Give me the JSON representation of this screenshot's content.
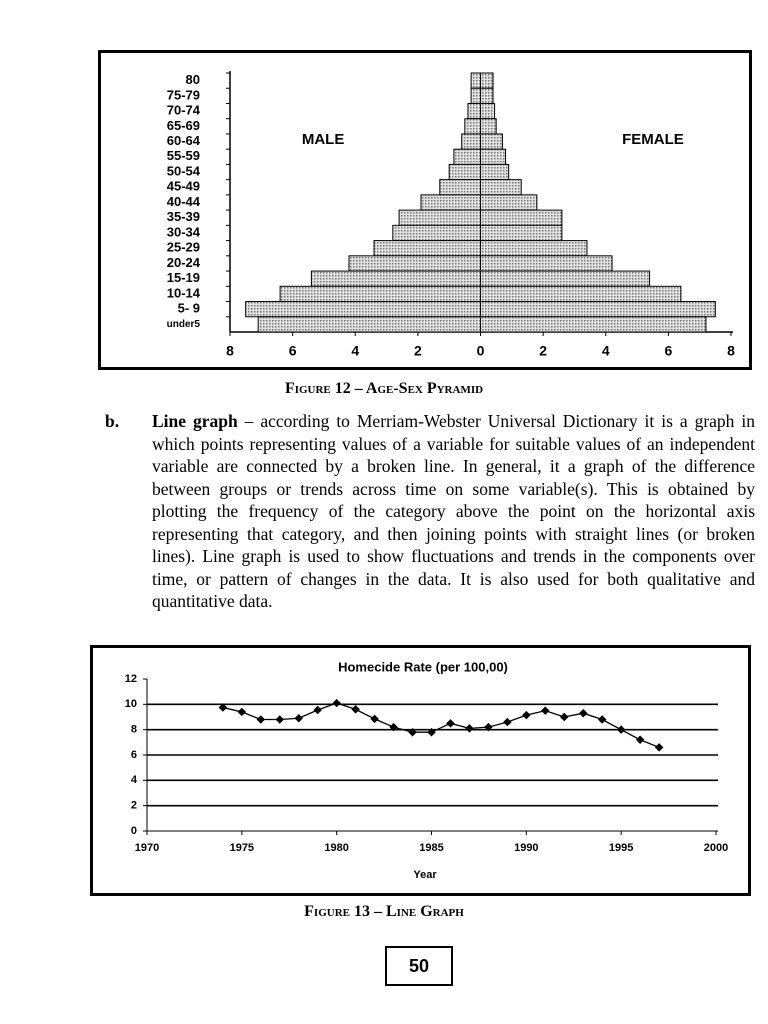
{
  "chart_data": [
    {
      "type": "pyramid",
      "categories": [
        "80",
        "75-79",
        "70-74",
        "65-69",
        "60-64",
        "55-59",
        "50-54",
        "45-49",
        "40-44",
        "35-39",
        "30-34",
        "25-29",
        "20-24",
        "15-19",
        "10-14",
        "5- 9",
        "under5"
      ],
      "series": [
        {
          "name": "MALE",
          "color": "#c8c8c8",
          "values": [
            -0.3,
            -0.3,
            -0.4,
            -0.5,
            -0.6,
            -0.85,
            -1.0,
            -1.3,
            -1.9,
            -2.6,
            -2.8,
            -3.4,
            -4.2,
            -5.4,
            -6.4,
            -7.5,
            -7.1
          ]
        },
        {
          "name": "FEMALE",
          "color": "#c8c8c8",
          "values": [
            0.4,
            0.4,
            0.45,
            0.5,
            0.7,
            0.8,
            0.9,
            1.3,
            1.8,
            2.6,
            2.6,
            3.4,
            4.2,
            5.4,
            6.4,
            7.5,
            7.2
          ]
        }
      ],
      "xlim": [
        -8,
        8
      ],
      "xticks": [
        {
          "value": -8,
          "label": "8"
        },
        {
          "value": -6,
          "label": "6"
        },
        {
          "value": -4,
          "label": "4"
        },
        {
          "value": -2,
          "label": "2"
        },
        0,
        2,
        4,
        6,
        8
      ],
      "caption": "Figure 12 – Age-Sex Pyramid"
    },
    {
      "type": "line",
      "title": "Homecide Rate (per 100,00)",
      "x_label": "Year",
      "x": [
        1974,
        1975,
        1976,
        1977,
        1978,
        1979,
        1980,
        1981,
        1982,
        1983,
        1984,
        1985,
        1986,
        1987,
        1988,
        1989,
        1990,
        1991,
        1992,
        1993,
        1994,
        1995,
        1996,
        1997
      ],
      "values": [
        9.75,
        9.4,
        8.8,
        8.8,
        8.9,
        9.55,
        10.1,
        9.6,
        8.85,
        8.2,
        7.8,
        7.8,
        8.5,
        8.1,
        8.2,
        8.6,
        9.15,
        9.5,
        9.0,
        9.3,
        8.8,
        8.0,
        7.2,
        6.6
      ],
      "color": "#000000",
      "xlim": [
        1970,
        2000
      ],
      "xticks": [
        1970,
        1975,
        1980,
        1985,
        1990,
        1995,
        2000
      ],
      "ylim": [
        0,
        12
      ],
      "yticks": [
        0,
        2,
        4,
        6,
        8,
        10,
        12
      ],
      "grid": true,
      "caption": "Figure 13 – Line Graph"
    }
  ],
  "paragraph": {
    "label": "b.",
    "term": "Line graph",
    "text": "– according to Merriam-Webster Universal Dictionary it is a graph in which points representing values of a variable for suitable values of an independent variable are connected by a broken line. In general, it a graph of the difference between groups or trends across time on some variable(s). This is obtained by plotting the frequency of the category above the point on the horizontal axis representing that category, and then joining points with straight lines (or broken lines). Line graph is used to show fluctuations and trends in the components over time, or pattern of changes in the data. It is also used for both qualitative and quantitative data."
  },
  "page_number": "50"
}
